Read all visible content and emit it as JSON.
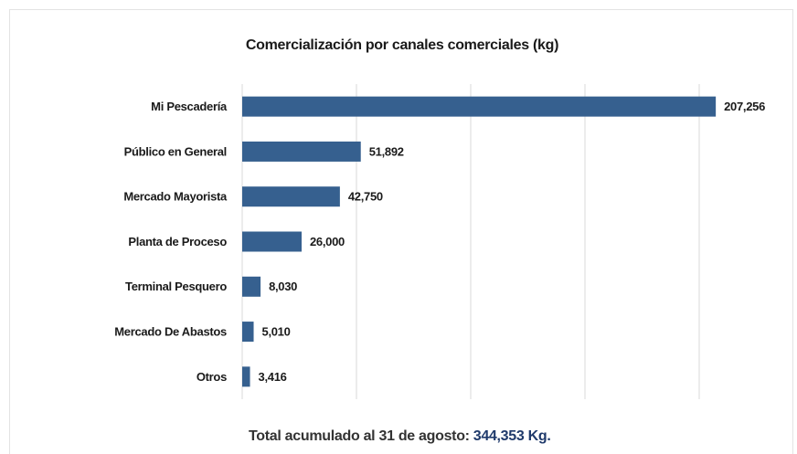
{
  "chart_data": {
    "type": "hbar",
    "title": "Comercialización por canales comerciales (kg)",
    "categories": [
      "Mi Pescadería",
      "Público en General",
      "Mercado Mayorista",
      "Planta de Proceso",
      "Terminal Pesquero",
      "Mercado De Abastos",
      "Otros"
    ],
    "values": [
      207256,
      51892,
      42750,
      26000,
      8030,
      5010,
      3416
    ],
    "value_labels": [
      "207,256",
      "51,892",
      "42,750",
      "26,000",
      "8,030",
      "5,010",
      "3,416"
    ],
    "color": "#36608f",
    "xlim": [
      0,
      240000
    ],
    "xticks": [
      0,
      50000,
      100000,
      150000,
      200000
    ],
    "grid": true,
    "footnote": {
      "label": "Total acumulado al 31 de agosto:",
      "value": "344,353 Kg."
    }
  }
}
